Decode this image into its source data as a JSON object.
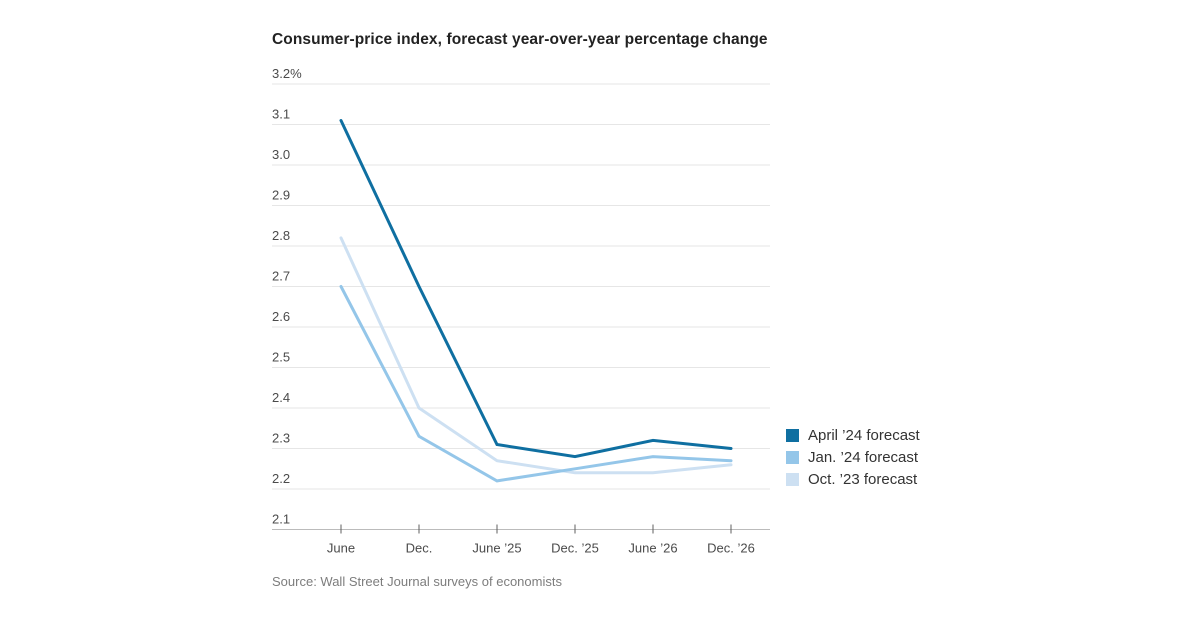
{
  "chart": {
    "title": "Consumer-price index, forecast year-over-year percentage change",
    "source": "Source: Wall Street Journal surveys of economists"
  },
  "chart_data": {
    "type": "line",
    "title": "Consumer-price index, forecast year-over-year percentage change",
    "xlabel": "",
    "ylabel": "",
    "categories": [
      "June",
      "Dec.",
      "June ’25",
      "Dec. ’25",
      "June ’26",
      "Dec. ’26"
    ],
    "series": [
      {
        "name": "April ’24 forecast",
        "color": "#0f6fa1",
        "values": [
          3.11,
          2.7,
          2.31,
          2.28,
          2.32,
          2.3
        ]
      },
      {
        "name": "Jan. ’24 forecast",
        "color": "#94c6e9",
        "values": [
          2.7,
          2.33,
          2.22,
          2.25,
          2.28,
          2.27
        ]
      },
      {
        "name": "Oct. ’23 forecast",
        "color": "#cde0f2",
        "values": [
          2.82,
          2.4,
          2.27,
          2.24,
          2.24,
          2.26
        ]
      }
    ],
    "y_ticks": [
      {
        "value": 3.2,
        "label": "3.2%"
      },
      {
        "value": 3.1,
        "label": "3.1"
      },
      {
        "value": 3.0,
        "label": "3.0"
      },
      {
        "value": 2.9,
        "label": "2.9"
      },
      {
        "value": 2.8,
        "label": "2.8"
      },
      {
        "value": 2.7,
        "label": "2.7"
      },
      {
        "value": 2.6,
        "label": "2.6"
      },
      {
        "value": 2.5,
        "label": "2.5"
      },
      {
        "value": 2.4,
        "label": "2.4"
      },
      {
        "value": 2.3,
        "label": "2.3"
      },
      {
        "value": 2.2,
        "label": "2.2"
      },
      {
        "value": 2.1,
        "label": "2.1"
      }
    ],
    "ylim": [
      2.1,
      3.2
    ],
    "grid": true,
    "legend_position": "right",
    "colors": {
      "grid": "#e6e6e6",
      "axis": "#bbbbbb",
      "tick": "#5f5f5f",
      "tick_label": "#4b4b4b",
      "title_text": "#222222",
      "legend_text": "#333333",
      "source_text": "#7d7d7d"
    }
  }
}
